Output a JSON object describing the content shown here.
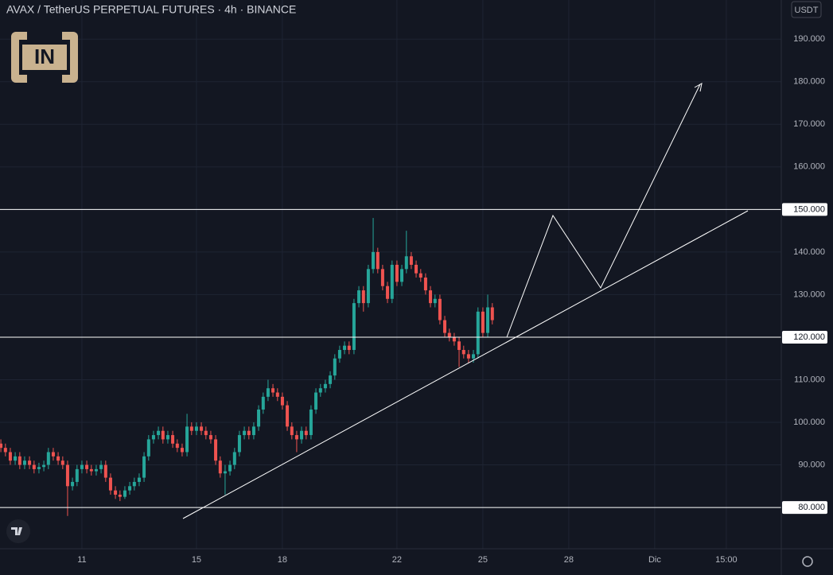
{
  "header": {
    "title": "AVAX / TetherUS PERPETUAL FUTURES · 4h · BINANCE",
    "currency": "USDT"
  },
  "logo": {
    "text": "IN"
  },
  "chart_data": {
    "type": "candlestick",
    "up_color": "#26a69a",
    "down_color": "#ef5350",
    "xlim": [
      8.14,
      35.42
    ],
    "ylim": [
      70.3,
      199.2
    ],
    "xticks": [
      11,
      15,
      18,
      22,
      25,
      28,
      {
        "value": 31,
        "label": "Dic"
      },
      {
        "value": 33.5,
        "label": "15:00"
      }
    ],
    "yticks": [
      {
        "value": 80,
        "label": "80.000"
      },
      {
        "value": 90,
        "label": "90.000"
      },
      {
        "value": 100,
        "label": "100.000"
      },
      {
        "value": 110,
        "label": "110.000"
      },
      {
        "value": 120,
        "label": "120.000"
      },
      {
        "value": 130,
        "label": "130.000"
      },
      {
        "value": 140,
        "label": "140.000"
      },
      {
        "value": 150,
        "label": "150.000"
      },
      {
        "value": 160,
        "label": "160.000"
      },
      {
        "value": 170,
        "label": "170.000"
      },
      {
        "value": 180,
        "label": "180.000"
      },
      {
        "value": 190,
        "label": "190.000"
      }
    ],
    "grid": true,
    "levels": [
      150,
      120,
      80
    ],
    "x": [
      8.17,
      8.33,
      8.5,
      8.67,
      8.83,
      9,
      9.17,
      9.33,
      9.5,
      9.67,
      9.83,
      10,
      10.17,
      10.33,
      10.5,
      10.67,
      10.83,
      11,
      11.17,
      11.33,
      11.5,
      11.67,
      11.83,
      12,
      12.17,
      12.33,
      12.5,
      12.67,
      12.83,
      13,
      13.17,
      13.33,
      13.5,
      13.67,
      13.83,
      14,
      14.17,
      14.33,
      14.5,
      14.67,
      14.83,
      15,
      15.17,
      15.33,
      15.5,
      15.67,
      15.83,
      16,
      16.17,
      16.33,
      16.5,
      16.67,
      16.83,
      17,
      17.17,
      17.33,
      17.5,
      17.67,
      17.83,
      18,
      18.17,
      18.33,
      18.5,
      18.67,
      18.83,
      19,
      19.17,
      19.33,
      19.5,
      19.67,
      19.83,
      20,
      20.17,
      20.33,
      20.5,
      20.67,
      20.83,
      21,
      21.17,
      21.33,
      21.5,
      21.67,
      21.83,
      22,
      22.17,
      22.33,
      22.5,
      22.67,
      22.83,
      23,
      23.17,
      23.33,
      23.5,
      23.67,
      23.83,
      24,
      24.17,
      24.33,
      24.5,
      24.67,
      24.83,
      25,
      25.17,
      25.33
    ],
    "ohlc": [
      [
        95,
        96,
        93,
        94
      ],
      [
        94,
        95,
        92,
        93
      ],
      [
        93,
        94,
        90,
        91
      ],
      [
        91,
        93,
        90,
        92
      ],
      [
        92,
        93,
        89,
        90
      ],
      [
        90,
        92,
        89,
        91
      ],
      [
        91,
        92,
        89,
        90
      ],
      [
        90,
        91,
        88,
        89
      ],
      [
        89,
        90.5,
        88,
        89.5
      ],
      [
        89.5,
        91,
        88.5,
        90
      ],
      [
        90,
        94,
        89,
        93
      ],
      [
        93,
        94,
        91,
        92
      ],
      [
        92,
        93,
        90,
        91
      ],
      [
        91,
        92,
        89,
        90
      ],
      [
        90,
        91,
        78,
        85
      ],
      [
        85,
        87,
        84,
        86
      ],
      [
        86,
        90,
        85,
        89
      ],
      [
        89,
        91,
        88,
        90
      ],
      [
        90,
        91,
        88,
        89
      ],
      [
        89,
        90,
        87.5,
        88.5
      ],
      [
        88.5,
        90,
        87.5,
        89
      ],
      [
        89,
        91,
        88,
        90
      ],
      [
        90,
        91,
        86,
        87
      ],
      [
        87,
        88,
        83,
        84
      ],
      [
        84,
        85,
        82,
        83
      ],
      [
        83,
        84,
        81.5,
        82.5
      ],
      [
        82.5,
        85,
        82,
        84
      ],
      [
        84,
        86,
        83,
        85
      ],
      [
        85,
        87,
        84,
        86
      ],
      [
        86,
        88,
        85,
        87
      ],
      [
        87,
        93,
        86,
        92
      ],
      [
        92,
        97,
        91,
        96
      ],
      [
        96,
        98,
        95,
        97
      ],
      [
        97,
        99,
        96,
        98
      ],
      [
        98,
        99,
        95,
        96
      ],
      [
        96,
        98,
        95,
        97
      ],
      [
        97,
        98,
        94,
        95
      ],
      [
        95,
        96,
        93,
        94
      ],
      [
        94,
        95,
        92,
        93
      ],
      [
        93,
        102,
        92,
        99
      ],
      [
        99,
        100,
        97,
        98
      ],
      [
        98,
        100,
        97,
        99
      ],
      [
        99,
        100,
        97,
        98
      ],
      [
        98,
        99,
        96,
        97
      ],
      [
        97,
        98,
        95,
        96
      ],
      [
        96,
        97,
        90,
        91
      ],
      [
        91,
        92,
        87,
        88
      ],
      [
        88,
        90,
        83,
        88.5
      ],
      [
        88.5,
        91,
        87.5,
        90
      ],
      [
        90,
        94,
        89,
        93
      ],
      [
        93,
        98,
        92,
        97
      ],
      [
        97,
        99,
        96,
        98
      ],
      [
        98,
        99,
        96,
        97
      ],
      [
        97,
        100,
        96,
        99
      ],
      [
        99,
        104,
        98,
        103
      ],
      [
        103,
        107,
        102,
        106
      ],
      [
        106,
        110,
        105,
        108
      ],
      [
        108,
        109,
        106,
        107
      ],
      [
        107,
        108,
        105,
        106
      ],
      [
        106,
        107,
        103,
        104
      ],
      [
        104,
        105,
        98,
        99
      ],
      [
        99,
        100,
        96,
        97
      ],
      [
        97,
        98,
        93,
        96
      ],
      [
        96,
        99,
        95,
        98
      ],
      [
        98,
        99,
        96,
        97
      ],
      [
        97,
        104,
        96,
        103
      ],
      [
        103,
        108,
        102,
        107
      ],
      [
        107,
        109,
        106,
        108
      ],
      [
        108,
        110,
        107,
        109
      ],
      [
        109,
        112,
        108,
        111
      ],
      [
        111,
        116,
        110,
        115
      ],
      [
        115,
        118,
        114,
        117
      ],
      [
        117,
        119,
        116,
        118
      ],
      [
        118,
        119,
        116,
        117
      ],
      [
        117,
        129,
        116,
        128
      ],
      [
        128,
        132,
        127,
        131
      ],
      [
        131,
        132,
        126,
        128
      ],
      [
        128,
        137,
        127,
        136
      ],
      [
        136,
        148,
        135,
        140
      ],
      [
        140,
        141,
        135,
        136
      ],
      [
        136,
        137,
        131,
        132
      ],
      [
        132,
        133,
        128,
        129
      ],
      [
        129,
        138,
        128,
        137
      ],
      [
        137,
        138,
        132,
        133
      ],
      [
        133,
        137,
        132,
        136
      ],
      [
        136,
        145,
        135,
        139
      ],
      [
        139,
        140,
        136,
        137
      ],
      [
        137,
        138,
        134,
        135
      ],
      [
        135,
        136,
        133,
        134
      ],
      [
        134,
        135,
        130,
        131
      ],
      [
        131,
        132,
        127,
        128
      ],
      [
        128,
        130,
        127,
        129
      ],
      [
        129,
        130,
        123,
        124
      ],
      [
        124,
        125,
        120,
        121
      ],
      [
        121,
        122,
        119,
        120
      ],
      [
        120,
        121,
        118,
        119
      ],
      [
        119,
        120,
        113,
        117
      ],
      [
        117,
        118,
        115,
        116
      ],
      [
        116,
        117,
        114,
        115
      ],
      [
        115,
        117,
        114,
        116
      ],
      [
        116,
        127,
        115,
        126
      ],
      [
        126,
        127,
        120,
        121
      ],
      [
        121,
        130,
        120,
        127
      ],
      [
        127,
        128,
        123,
        124
      ]
    ]
  }
}
